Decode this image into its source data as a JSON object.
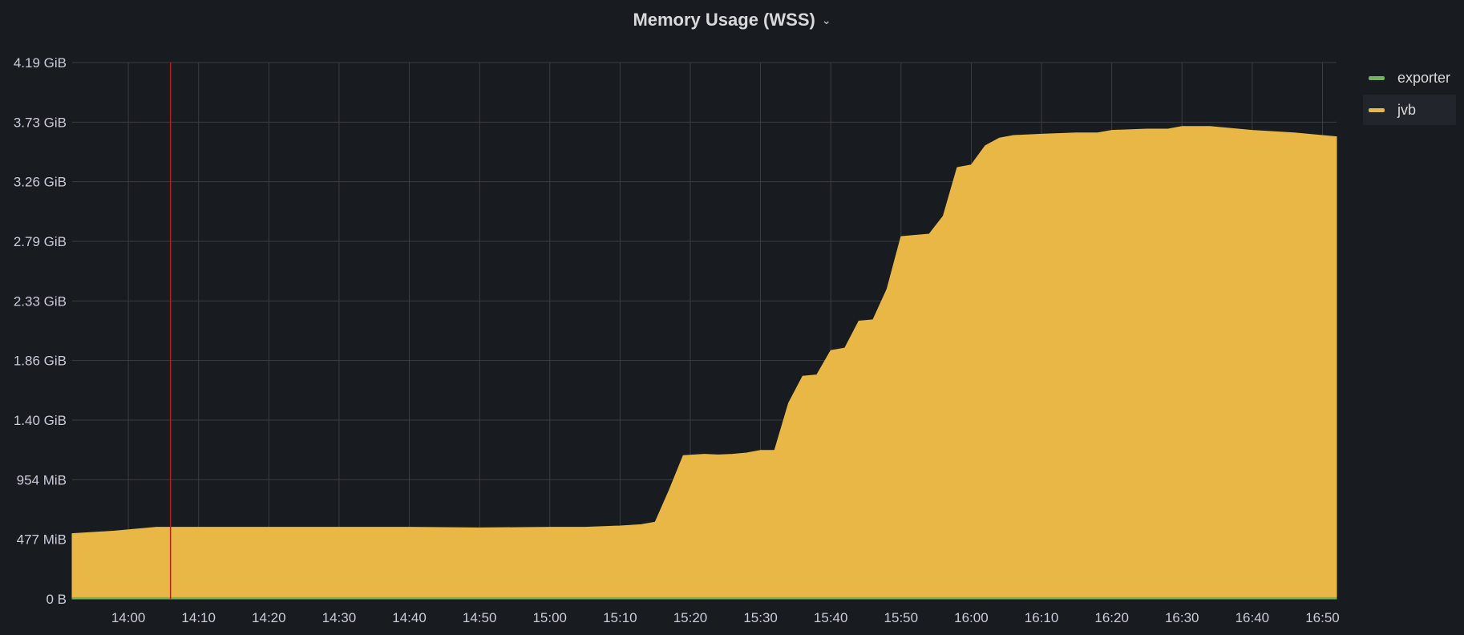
{
  "panel": {
    "title": "Memory Usage (WSS)",
    "title_chevron_icon": "chevron-down-icon"
  },
  "colors": {
    "background": "#181b1f",
    "jvb": "#e8b745",
    "exporter": "#6fb55a",
    "cursor_line": "#b3211f"
  },
  "legend": [
    {
      "name": "exporter",
      "color": "#6fb55a"
    },
    {
      "name": "jvb",
      "color": "#e8b745"
    }
  ],
  "chart_data": {
    "type": "area",
    "title": "Memory Usage (WSS)",
    "grid": true,
    "legend_position": "right",
    "x_ticks": [
      "14:00",
      "14:10",
      "14:20",
      "14:30",
      "14:40",
      "14:50",
      "15:00",
      "15:10",
      "15:20",
      "15:30",
      "15:40",
      "15:50",
      "16:00",
      "16:10",
      "16:20",
      "16:30",
      "16:40",
      "16:50"
    ],
    "y_ticks": [
      "0 B",
      "477 MiB",
      "954 MiB",
      "1.40 GiB",
      "1.86 GiB",
      "2.33 GiB",
      "2.79 GiB",
      "3.26 GiB",
      "3.73 GiB",
      "4.19 GiB"
    ],
    "ylim_gib": [
      0,
      4.19
    ],
    "xlim": [
      "13:52",
      "16:52"
    ],
    "cursor_time": "14:06",
    "series": [
      {
        "name": "jvb",
        "color": "#e8b745",
        "x": [
          "13:52",
          "13:58",
          "14:04",
          "14:06",
          "14:20",
          "14:40",
          "14:50",
          "15:00",
          "15:05",
          "15:10",
          "15:13",
          "15:15",
          "15:17",
          "15:19",
          "15:22",
          "15:24",
          "15:26",
          "15:28",
          "15:30",
          "15:32",
          "15:34",
          "15:36",
          "15:38",
          "15:40",
          "15:42",
          "15:44",
          "15:46",
          "15:48",
          "15:50",
          "15:52",
          "15:54",
          "15:56",
          "15:58",
          "16:00",
          "16:02",
          "16:04",
          "16:06",
          "16:10",
          "16:15",
          "16:18",
          "16:20",
          "16:25",
          "16:28",
          "16:30",
          "16:34",
          "16:40",
          "16:46",
          "16:52"
        ],
        "y_gib": [
          0.51,
          0.53,
          0.56,
          0.56,
          0.56,
          0.56,
          0.555,
          0.56,
          0.56,
          0.57,
          0.58,
          0.6,
          0.85,
          1.12,
          1.13,
          1.125,
          1.13,
          1.14,
          1.16,
          1.16,
          1.53,
          1.74,
          1.75,
          1.94,
          1.96,
          2.17,
          2.18,
          2.42,
          2.83,
          2.84,
          2.85,
          2.99,
          3.37,
          3.39,
          3.54,
          3.6,
          3.62,
          3.63,
          3.64,
          3.64,
          3.66,
          3.67,
          3.67,
          3.69,
          3.69,
          3.66,
          3.64,
          3.61
        ]
      },
      {
        "name": "exporter",
        "color": "#6fb55a",
        "x": [
          "13:52",
          "16:52"
        ],
        "y_gib": [
          0.01,
          0.01
        ]
      }
    ]
  }
}
